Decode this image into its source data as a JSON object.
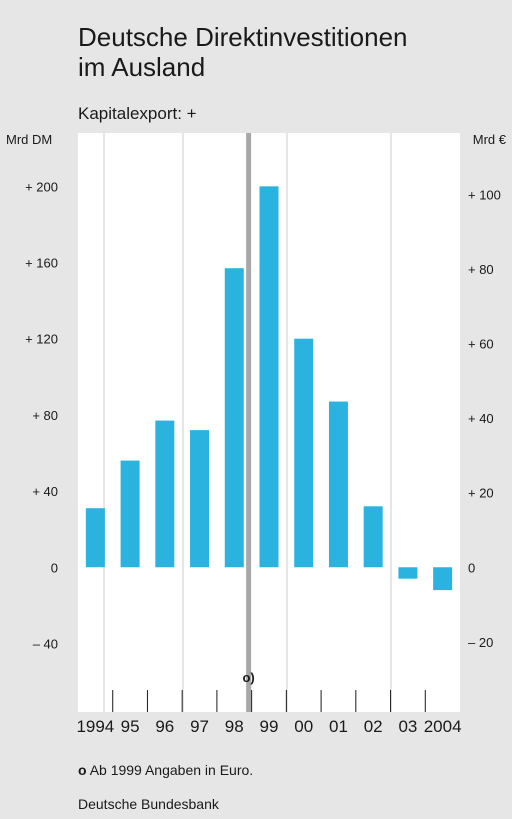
{
  "title_line1": "Deutsche Direktinvestitionen",
  "title_line2": "im Ausland",
  "subtitle": "Kapitalexport: +",
  "unit_left": "Mrd DM",
  "unit_right": "Mrd €",
  "footnote_marker": "o",
  "footnote_text": "Ab 1999 Angaben in Euro.",
  "source": "Deutsche Bundesbank",
  "colors": {
    "bar": "#2bb3e0",
    "panel": "#e6e6e6",
    "plot": "#ffffff",
    "divider": "#a8a8a8"
  },
  "chart_data": {
    "type": "bar",
    "categories": [
      "1994",
      "95",
      "96",
      "97",
      "98",
      "99",
      "00",
      "01",
      "02",
      "03",
      "2004"
    ],
    "values": [
      31,
      56,
      77,
      72,
      157,
      200,
      120,
      87,
      32,
      -6,
      -12
    ],
    "ylim_left": [
      -76,
      228
    ],
    "yticks_left": [
      -40,
      0,
      40,
      80,
      120,
      160,
      200
    ],
    "yticks_left_labels": [
      "–   40",
      "0",
      "+   40",
      "+   80",
      "+ 120",
      "+ 160",
      "+ 200"
    ],
    "yticks_right": [
      -20,
      0,
      20,
      40,
      60,
      80,
      100
    ],
    "yticks_right_labels": [
      "– 20",
      "0",
      "+ 20",
      "+ 40",
      "+ 60",
      "+ 80",
      "+ 100"
    ],
    "euro_conversion_dm_per_eur": 1.95583,
    "currency_switch_after": "98",
    "currency_switch_marker": "o)",
    "grid": "vertical"
  }
}
